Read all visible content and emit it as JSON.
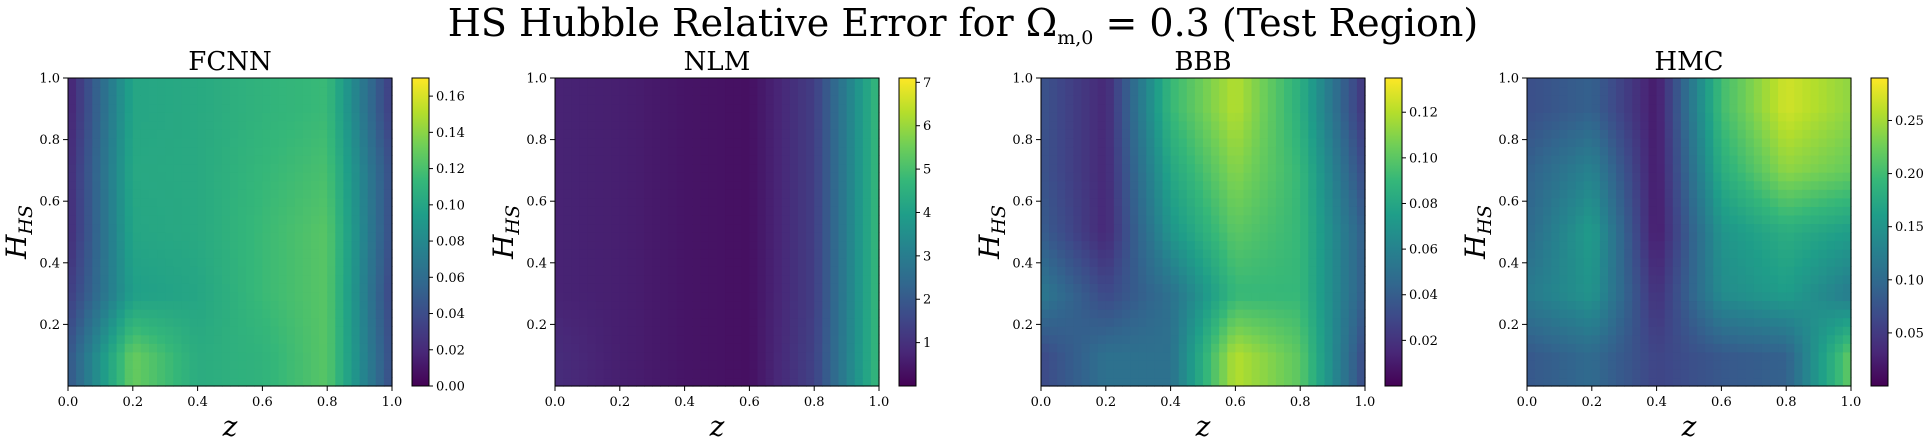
{
  "figure": {
    "suptitle": "HS Hubble Relative Error for Ωm,0 = 0.3 (Test Region)",
    "suptitle_parts": {
      "prefix": "HS Hubble Relative Error for Ω",
      "subscript": "m,0",
      "suffix": " = 0.3 (Test Region)"
    }
  },
  "colormap": "viridis",
  "chart_data": [
    {
      "type": "heatmap",
      "title": "FCNN",
      "xlabel": "z",
      "ylabel_parts": {
        "base": "H",
        "subscript": "HS"
      },
      "xlim": [
        0.0,
        1.0
      ],
      "ylim": [
        0.0,
        1.0
      ],
      "xticks": [
        "0.0",
        "0.2",
        "0.4",
        "0.6",
        "0.8",
        "1.0"
      ],
      "yticks": [
        "0.2",
        "0.4",
        "0.6",
        "0.8",
        "1.0"
      ],
      "colorbar": {
        "min": 0.0,
        "max": 0.17,
        "ticks": [
          "0.00",
          "0.02",
          "0.04",
          "0.06",
          "0.08",
          "0.10",
          "0.12",
          "0.14",
          "0.16"
        ]
      },
      "grid": {
        "x": [
          0.0,
          0.2,
          0.4,
          0.6,
          0.8,
          1.0
        ],
        "y": [
          0.1,
          0.3,
          0.5,
          0.7,
          0.9
        ],
        "values": [
          [
            0.045,
            0.13,
            0.105,
            0.11,
            0.125,
            0.04
          ],
          [
            0.03,
            0.095,
            0.1,
            0.115,
            0.125,
            0.035
          ],
          [
            0.02,
            0.1,
            0.103,
            0.115,
            0.125,
            0.04
          ],
          [
            0.02,
            0.102,
            0.103,
            0.113,
            0.12,
            0.04
          ],
          [
            0.015,
            0.1,
            0.103,
            0.11,
            0.115,
            0.03
          ]
        ]
      }
    },
    {
      "type": "heatmap",
      "title": "NLM",
      "xlabel": "z",
      "ylabel_parts": {
        "base": "H",
        "subscript": "HS"
      },
      "xlim": [
        0.0,
        1.0
      ],
      "ylim": [
        0.0,
        1.0
      ],
      "xticks": [
        "0.0",
        "0.2",
        "0.4",
        "0.6",
        "0.8",
        "1.0"
      ],
      "yticks": [
        "0.2",
        "0.4",
        "0.6",
        "0.8",
        "1.0"
      ],
      "colorbar": {
        "min": 0.0,
        "max": 7.1,
        "ticks": [
          "1",
          "2",
          "3",
          "4",
          "5",
          "6",
          "7"
        ]
      },
      "grid": {
        "x": [
          0.0,
          0.2,
          0.4,
          0.6,
          0.8,
          1.0
        ],
        "y": [
          0.1,
          0.3,
          0.5,
          0.7,
          0.9
        ],
        "values": [
          [
            0.9,
            0.6,
            0.4,
            0.3,
            1.4,
            4.8
          ],
          [
            0.7,
            0.6,
            0.4,
            0.3,
            1.3,
            4.8
          ],
          [
            0.7,
            0.6,
            0.4,
            0.3,
            1.3,
            4.8
          ],
          [
            0.7,
            0.6,
            0.4,
            0.3,
            1.3,
            4.8
          ],
          [
            0.7,
            0.6,
            0.4,
            0.3,
            1.3,
            4.8
          ]
        ]
      }
    },
    {
      "type": "heatmap",
      "title": "BBB",
      "xlabel": "z",
      "ylabel_parts": {
        "base": "H",
        "subscript": "HS"
      },
      "xlim": [
        0.0,
        1.0
      ],
      "ylim": [
        0.0,
        1.0
      ],
      "xticks": [
        "0.0",
        "0.2",
        "0.4",
        "0.6",
        "0.8",
        "1.0"
      ],
      "yticks": [
        "0.2",
        "0.4",
        "0.6",
        "0.8",
        "1.0"
      ],
      "colorbar": {
        "min": 0.0,
        "max": 0.135,
        "ticks": [
          "0.02",
          "0.04",
          "0.06",
          "0.08",
          "0.10",
          "0.12"
        ]
      },
      "grid": {
        "x": [
          0.0,
          0.2,
          0.4,
          0.6,
          0.8,
          1.0
        ],
        "y": [
          0.1,
          0.3,
          0.5,
          0.7,
          0.9
        ],
        "values": [
          [
            0.03,
            0.05,
            0.05,
            0.12,
            0.1,
            0.03
          ],
          [
            0.055,
            0.03,
            0.05,
            0.09,
            0.09,
            0.04
          ],
          [
            0.04,
            0.015,
            0.07,
            0.1,
            0.09,
            0.04
          ],
          [
            0.035,
            0.015,
            0.08,
            0.11,
            0.09,
            0.03
          ],
          [
            0.035,
            0.015,
            0.09,
            0.12,
            0.085,
            0.02
          ]
        ]
      }
    },
    {
      "type": "heatmap",
      "title": "HMC",
      "xlabel": "z",
      "ylabel_parts": {
        "base": "H",
        "subscript": "HS"
      },
      "xlim": [
        0.0,
        1.0
      ],
      "ylim": [
        0.0,
        1.0
      ],
      "xticks": [
        "0.0",
        "0.2",
        "0.4",
        "0.6",
        "0.8",
        "1.0"
      ],
      "yticks": [
        "0.2",
        "0.4",
        "0.6",
        "0.8",
        "1.0"
      ],
      "colorbar": {
        "min": 0.0,
        "max": 0.29,
        "ticks": [
          "0.05",
          "0.10",
          "0.15",
          "0.20",
          "0.25"
        ]
      },
      "grid": {
        "x": [
          0.0,
          0.2,
          0.4,
          0.6,
          0.8,
          1.0
        ],
        "y": [
          0.1,
          0.3,
          0.5,
          0.7,
          0.9
        ],
        "values": [
          [
            0.08,
            0.1,
            0.06,
            0.08,
            0.09,
            0.22
          ],
          [
            0.12,
            0.15,
            0.04,
            0.14,
            0.16,
            0.12
          ],
          [
            0.1,
            0.16,
            0.02,
            0.15,
            0.18,
            0.16
          ],
          [
            0.09,
            0.13,
            0.02,
            0.18,
            0.24,
            0.22
          ],
          [
            0.07,
            0.09,
            0.02,
            0.2,
            0.27,
            0.24
          ]
        ]
      }
    }
  ]
}
